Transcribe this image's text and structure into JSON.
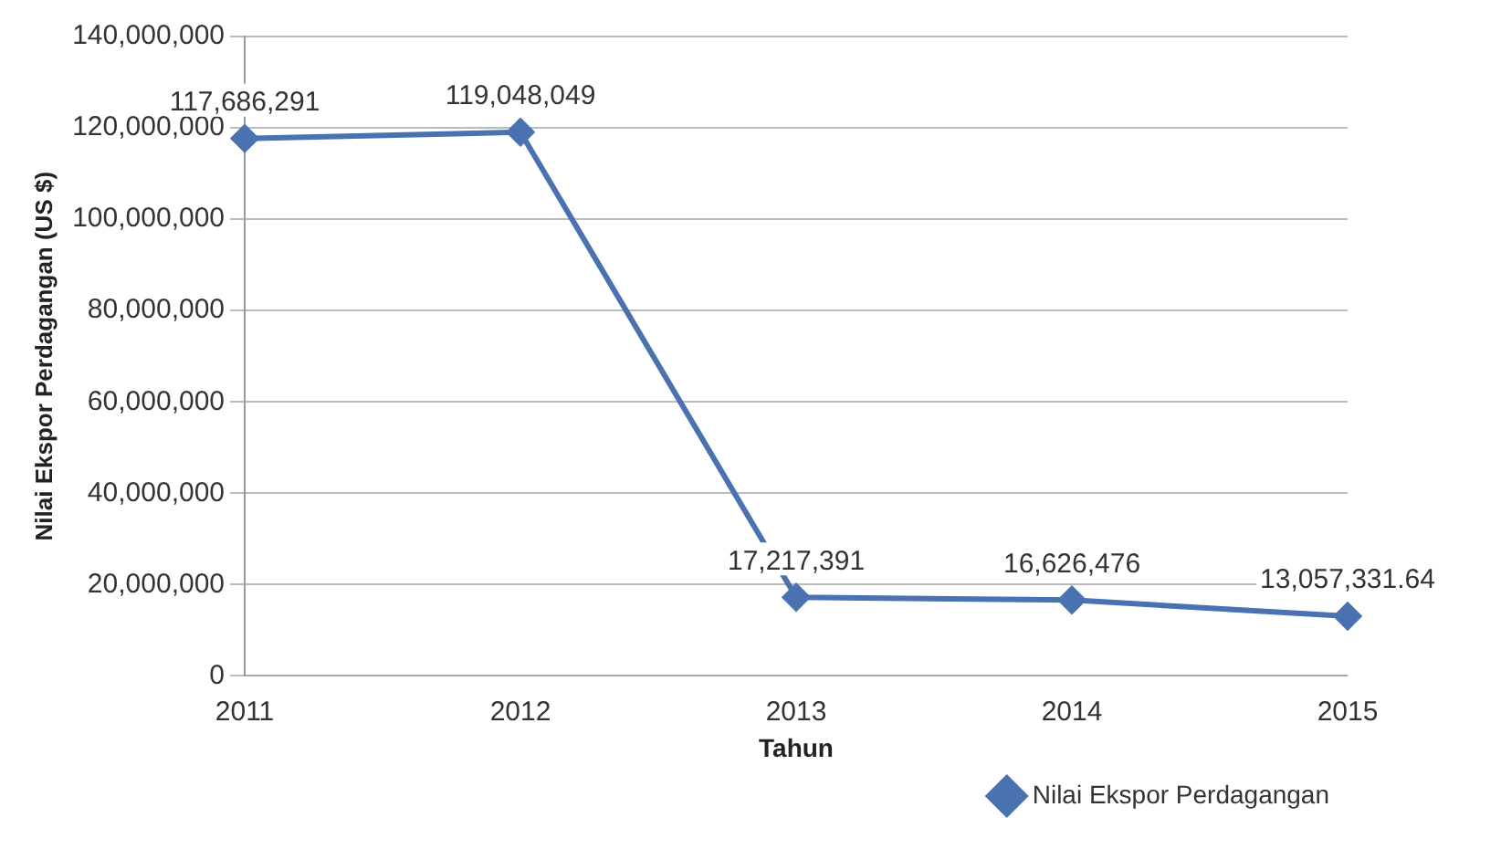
{
  "chart_data": {
    "type": "line",
    "xlabel": "Tahun",
    "ylabel": "Nilai Ekspor Perdagangan (US $)",
    "categories": [
      "2011",
      "2012",
      "2013",
      "2014",
      "2015"
    ],
    "series": [
      {
        "name": "Nilai Ekspor Perdagangan",
        "color": "#4a72b0",
        "values": [
          117686291,
          119048049,
          17217391,
          16626476,
          13057331.64
        ],
        "value_labels": [
          "117,686,291",
          "119,048,049",
          "17,217,391",
          "16,626,476",
          "13,057,331.64"
        ]
      }
    ],
    "ylim": [
      0,
      140000000
    ],
    "yticks": [
      {
        "value": 0,
        "label": "0"
      },
      {
        "value": 20000000,
        "label": "20,000,000"
      },
      {
        "value": 40000000,
        "label": "40,000,000"
      },
      {
        "value": 60000000,
        "label": "60,000,000"
      },
      {
        "value": 80000000,
        "label": "80,000,000"
      },
      {
        "value": 100000000,
        "label": "100,000,000"
      },
      {
        "value": 120000000,
        "label": "120,000,000"
      },
      {
        "value": 140000000,
        "label": "140,000,000"
      }
    ],
    "grid": "y",
    "legend": "bottom right",
    "marker": "diamond",
    "line_style": "solid"
  }
}
